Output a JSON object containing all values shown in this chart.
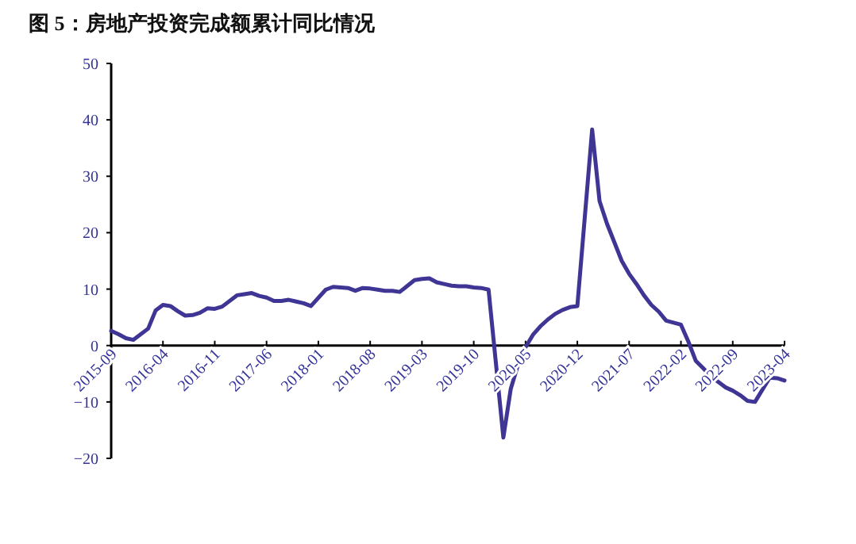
{
  "chart_data": {
    "type": "line",
    "title": "图 5：房地产投资完成额累计同比情况",
    "x": [
      "2015-09",
      "2015-10",
      "2015-11",
      "2015-12",
      "2016-02",
      "2016-03",
      "2016-04",
      "2016-05",
      "2016-06",
      "2016-07",
      "2016-08",
      "2016-09",
      "2016-10",
      "2016-11",
      "2016-12",
      "2017-02",
      "2017-03",
      "2017-04",
      "2017-05",
      "2017-06",
      "2017-07",
      "2017-08",
      "2017-09",
      "2017-10",
      "2017-11",
      "2017-12",
      "2018-02",
      "2018-03",
      "2018-04",
      "2018-05",
      "2018-06",
      "2018-07",
      "2018-08",
      "2018-09",
      "2018-10",
      "2018-11",
      "2018-12",
      "2019-02",
      "2019-03",
      "2019-04",
      "2019-05",
      "2019-06",
      "2019-07",
      "2019-08",
      "2019-09",
      "2019-10",
      "2019-11",
      "2019-12",
      "2020-02",
      "2020-03",
      "2020-04",
      "2020-05",
      "2020-06",
      "2020-07",
      "2020-08",
      "2020-09",
      "2020-10",
      "2020-11",
      "2020-12",
      "2021-02",
      "2021-03",
      "2021-04",
      "2021-05",
      "2021-06",
      "2021-07",
      "2021-08",
      "2021-09",
      "2021-10",
      "2021-11",
      "2021-12",
      "2022-02",
      "2022-03",
      "2022-04",
      "2022-05",
      "2022-06",
      "2022-07",
      "2022-08",
      "2022-09",
      "2022-10",
      "2022-11",
      "2022-12",
      "2023-02",
      "2023-03",
      "2023-04"
    ],
    "series": [
      {
        "color": "#3f3595",
        "values": [
          2.6,
          2.0,
          1.3,
          1.0,
          3.0,
          6.2,
          7.2,
          7.0,
          6.1,
          5.3,
          5.4,
          5.8,
          6.6,
          6.5,
          6.9,
          8.9,
          9.1,
          9.3,
          8.8,
          8.5,
          7.9,
          7.9,
          8.1,
          7.8,
          7.5,
          7.0,
          9.9,
          10.4,
          10.3,
          10.2,
          9.7,
          10.2,
          10.1,
          9.9,
          9.7,
          9.7,
          9.5,
          11.6,
          11.8,
          11.9,
          11.2,
          10.9,
          10.6,
          10.5,
          10.5,
          10.3,
          10.2,
          9.9,
          -16.3,
          -7.7,
          -3.3,
          -0.3,
          1.9,
          3.4,
          4.6,
          5.6,
          6.3,
          6.8,
          7.0,
          38.3,
          25.6,
          21.6,
          18.3,
          15.0,
          12.7,
          10.9,
          8.9,
          7.2,
          6.0,
          4.4,
          3.7,
          0.7,
          -2.7,
          -4.0,
          -5.4,
          -6.4,
          -7.4,
          -8.0,
          -8.8,
          -9.8,
          -10.0,
          -5.7,
          -5.8,
          -6.2
        ]
      }
    ],
    "xlim": [
      "2015-09",
      "2023-04"
    ],
    "xticks": [
      "2015-09",
      "2016-04",
      "2016-11",
      "2017-06",
      "2018-01",
      "2018-08",
      "2019-03",
      "2019-10",
      "2020-05",
      "2020-12",
      "2021-07",
      "2022-02",
      "2022-09",
      "2023-04"
    ],
    "ylim": [
      -20,
      50
    ],
    "yticks": [
      -20,
      -10,
      0,
      10,
      20,
      30,
      40,
      50
    ],
    "grid": false,
    "marker": "none",
    "line_style": "solid"
  }
}
